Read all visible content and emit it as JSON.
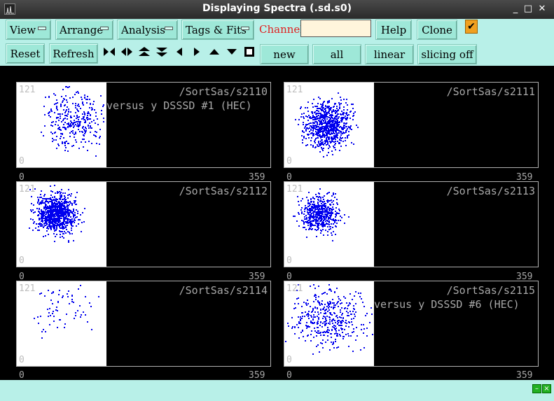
{
  "window": {
    "title": "Displaying Spectra (.sd.s0)",
    "minimize": "_",
    "maximize": "□",
    "close": "✕"
  },
  "toolbar": {
    "menus": [
      {
        "label": "View"
      },
      {
        "label": "Arrange"
      },
      {
        "label": "Analysis"
      },
      {
        "label": "Tags & Fits"
      }
    ],
    "channel_label": "Channel:",
    "channel_value": "",
    "help_label": "Help",
    "clone_label": "Clone",
    "checkbox_mark": "✔",
    "reset_label": "Reset",
    "refresh_label": "Refresh",
    "new_label": "new",
    "all_label": "all",
    "linear_label": "linear",
    "slicing_label": "slicing off",
    "icons": [
      "shrink-horizontal-icon",
      "expand-horizontal-icon",
      "expand-up-icon",
      "expand-down-icon",
      "arrow-left-icon",
      "arrow-right-icon",
      "arrow-up-icon",
      "arrow-down-icon",
      "square-icon"
    ]
  },
  "spectra": [
    {
      "name": "/SortSas/s2110",
      "caption": "versus y DSSSD #1 (HEC)",
      "ymax": "121",
      "ymin": "0",
      "xmin": "0",
      "xmax": "359",
      "density": 0.35
    },
    {
      "name": "/SortSas/s2111",
      "caption": "",
      "ymax": "121",
      "ymin": "0",
      "xmin": "0",
      "xmax": "359",
      "density": 0.9
    },
    {
      "name": "/SortSas/s2112",
      "caption": "",
      "ymax": "121",
      "ymin": "0",
      "xmin": "0",
      "xmax": "359",
      "density": 0.95
    },
    {
      "name": "/SortSas/s2113",
      "caption": "",
      "ymax": "121",
      "ymin": "0",
      "xmin": "0",
      "xmax": "359",
      "density": 0.6
    },
    {
      "name": "/SortSas/s2114",
      "caption": "",
      "ymax": "121",
      "ymin": "0",
      "xmin": "0",
      "xmax": "359",
      "density": 0.08
    },
    {
      "name": "/SortSas/s2115",
      "caption": "versus y DSSSD #6 (HEC)",
      "ymax": "121",
      "ymin": "0",
      "xmin": "0",
      "xmax": "359",
      "density": 0.45
    }
  ],
  "colors": {
    "points": "#0000ee",
    "toolbar_bg": "#b8f0e8",
    "button_bg": "#9ee8d8",
    "channel_label": "#e02020"
  }
}
